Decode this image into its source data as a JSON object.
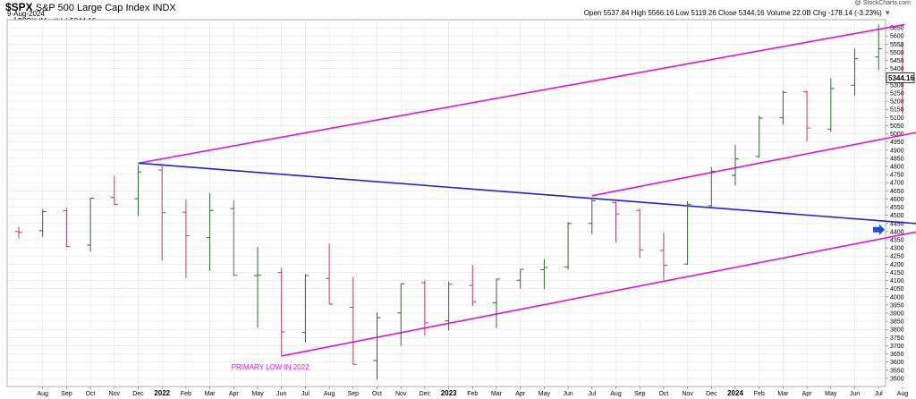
{
  "header": {
    "symbol": "$SPX",
    "name": "S&P 500 Large Cap Index",
    "exchange": "INDX",
    "date": "9-Aug-2024",
    "credit": "@ StockCharts.com",
    "open_label": "Open",
    "open": "5537.84",
    "high_label": "High",
    "high": "5566.16",
    "low_label": "Low",
    "low": "5119.26",
    "close_label": "Close",
    "close": "5344.16",
    "volume_label": "Volume",
    "volume": "22.0B",
    "chg_label": "Chg",
    "chg": "-178.14 (-3.23%)",
    "chg_arrow": "▼"
  },
  "legend": {
    "text": "$SPX (Monthly) 5344.16"
  },
  "colors": {
    "up": "#2e6b2e",
    "down": "#c8336a",
    "channel": "#e010e0",
    "trend": "#2222cc",
    "grid": "#e4e4e4"
  },
  "chart_data": {
    "type": "ohlc",
    "ylim": [
      3450,
      5700
    ],
    "yticks": [
      3500,
      3550,
      3600,
      3650,
      3700,
      3750,
      3800,
      3850,
      3900,
      3950,
      4000,
      4050,
      4100,
      4150,
      4200,
      4250,
      4300,
      4350,
      4400,
      4450,
      4500,
      4550,
      4600,
      4650,
      4700,
      4750,
      4800,
      4850,
      4900,
      4950,
      5000,
      5050,
      5100,
      5150,
      5200,
      5250,
      5300,
      5350,
      5400,
      5450,
      5500,
      5550,
      5600,
      5650
    ],
    "x_labels": [
      "Aug",
      "Sep",
      "Oct",
      "Nov",
      "Dec",
      "2022",
      "Feb",
      "Mar",
      "Apr",
      "May",
      "Jun",
      "Jul",
      "Aug",
      "Sep",
      "Oct",
      "Nov",
      "Dec",
      "2023",
      "Feb",
      "Mar",
      "Apr",
      "May",
      "Jun",
      "Jul",
      "Aug",
      "Sep",
      "Oct",
      "Nov",
      "Dec",
      "2024",
      "Feb",
      "Mar",
      "Apr",
      "May",
      "Jun",
      "Jul",
      "Aug"
    ],
    "year_labels": [
      "2022",
      "2023",
      "2024"
    ],
    "bars": [
      {
        "m": "Jul 2021",
        "o": 4400,
        "h": 4430,
        "l": 4360,
        "c": 4395
      },
      {
        "m": "Aug 2021",
        "o": 4406,
        "h": 4537,
        "l": 4367,
        "c": 4523
      },
      {
        "m": "Sep 2021",
        "o": 4528,
        "h": 4546,
        "l": 4306,
        "c": 4308
      },
      {
        "m": "Oct 2021",
        "o": 4317,
        "h": 4608,
        "l": 4279,
        "c": 4605
      },
      {
        "m": "Nov 2021",
        "o": 4610,
        "h": 4743,
        "l": 4561,
        "c": 4567
      },
      {
        "m": "Dec 2021",
        "o": 4602,
        "h": 4808,
        "l": 4496,
        "c": 4766
      },
      {
        "m": "Jan 2022",
        "o": 4778,
        "h": 4818,
        "l": 4222,
        "c": 4516
      },
      {
        "m": "Feb 2022",
        "o": 4519,
        "h": 4595,
        "l": 4115,
        "c": 4374
      },
      {
        "m": "Mar 2022",
        "o": 4363,
        "h": 4637,
        "l": 4157,
        "c": 4530
      },
      {
        "m": "Apr 2022",
        "o": 4541,
        "h": 4593,
        "l": 4129,
        "c": 4132
      },
      {
        "m": "May 2022",
        "o": 4130,
        "h": 4307,
        "l": 3811,
        "c": 4132
      },
      {
        "m": "Jun 2022",
        "o": 4149,
        "h": 4178,
        "l": 3637,
        "c": 3785
      },
      {
        "m": "Jul 2022",
        "o": 3781,
        "h": 4140,
        "l": 3721,
        "c": 4130
      },
      {
        "m": "Aug 2022",
        "o": 4112,
        "h": 4325,
        "l": 3955,
        "c": 3955
      },
      {
        "m": "Sep 2022",
        "o": 3936,
        "h": 4120,
        "l": 3584,
        "c": 3586
      },
      {
        "m": "Oct 2022",
        "o": 3609,
        "h": 3905,
        "l": 3491,
        "c": 3872
      },
      {
        "m": "Nov 2022",
        "o": 3901,
        "h": 4080,
        "l": 3698,
        "c": 4080
      },
      {
        "m": "Dec 2022",
        "o": 4087,
        "h": 4101,
        "l": 3764,
        "c": 3840
      },
      {
        "m": "Jan 2023",
        "o": 3853,
        "h": 4095,
        "l": 3794,
        "c": 4077
      },
      {
        "m": "Feb 2023",
        "o": 4070,
        "h": 4195,
        "l": 3943,
        "c": 3970
      },
      {
        "m": "Mar 2023",
        "o": 3963,
        "h": 4110,
        "l": 3809,
        "c": 4109
      },
      {
        "m": "Apr 2023",
        "o": 4102,
        "h": 4170,
        "l": 4049,
        "c": 4169
      },
      {
        "m": "May 2023",
        "o": 4166,
        "h": 4232,
        "l": 4048,
        "c": 4180
      },
      {
        "m": "Jun 2023",
        "o": 4183,
        "h": 4458,
        "l": 4167,
        "c": 4450
      },
      {
        "m": "Jul 2023",
        "o": 4450,
        "h": 4607,
        "l": 4385,
        "c": 4589
      },
      {
        "m": "Aug 2023",
        "o": 4578,
        "h": 4584,
        "l": 4335,
        "c": 4508
      },
      {
        "m": "Sep 2023",
        "o": 4530,
        "h": 4541,
        "l": 4238,
        "c": 4288
      },
      {
        "m": "Oct 2023",
        "o": 4284,
        "h": 4393,
        "l": 4104,
        "c": 4194
      },
      {
        "m": "Nov 2023",
        "o": 4201,
        "h": 4587,
        "l": 4197,
        "c": 4568
      },
      {
        "m": "Dec 2023",
        "o": 4559,
        "h": 4794,
        "l": 4547,
        "c": 4770
      },
      {
        "m": "Jan 2024",
        "o": 4745,
        "h": 4932,
        "l": 4683,
        "c": 4846
      },
      {
        "m": "Feb 2024",
        "o": 4861,
        "h": 5112,
        "l": 4853,
        "c": 5096
      },
      {
        "m": "Mar 2024",
        "o": 5098,
        "h": 5265,
        "l": 5057,
        "c": 5254
      },
      {
        "m": "Apr 2024",
        "o": 5258,
        "h": 5264,
        "l": 4954,
        "c": 5036
      },
      {
        "m": "May 2024",
        "o": 5029,
        "h": 5341,
        "l": 5012,
        "c": 5278
      },
      {
        "m": "Jun 2024",
        "o": 5298,
        "h": 5523,
        "l": 5234,
        "c": 5460
      },
      {
        "m": "Jul 2024",
        "o": 5471,
        "h": 5670,
        "l": 5390,
        "c": 5522
      },
      {
        "m": "Aug 2024",
        "o": 5538,
        "h": 5566,
        "l": 5119,
        "c": 5344
      }
    ],
    "lines": [
      {
        "name": "channel-upper",
        "color": "channel",
        "from": {
          "i": 5,
          "y": 4820
        },
        "to": {
          "i": 37.1,
          "y": 5670
        }
      },
      {
        "name": "channel-lower",
        "color": "channel",
        "from": {
          "i": 11,
          "y": 3637
        },
        "to": {
          "i": 38,
          "y": 4410
        }
      },
      {
        "name": "channel-mid",
        "color": "channel",
        "from": {
          "i": 24,
          "y": 4620
        },
        "to": {
          "i": 38,
          "y": 5020
        }
      },
      {
        "name": "trendline",
        "color": "trend",
        "from": {
          "i": 5,
          "y": 4820
        },
        "to": {
          "i": 37.7,
          "y": 4448
        }
      }
    ],
    "annotation": {
      "text": "PRIMARY LOW IN 2022",
      "i": 11,
      "y": 3555
    },
    "last_value": "5344.16",
    "arrow_value": 4412
  }
}
